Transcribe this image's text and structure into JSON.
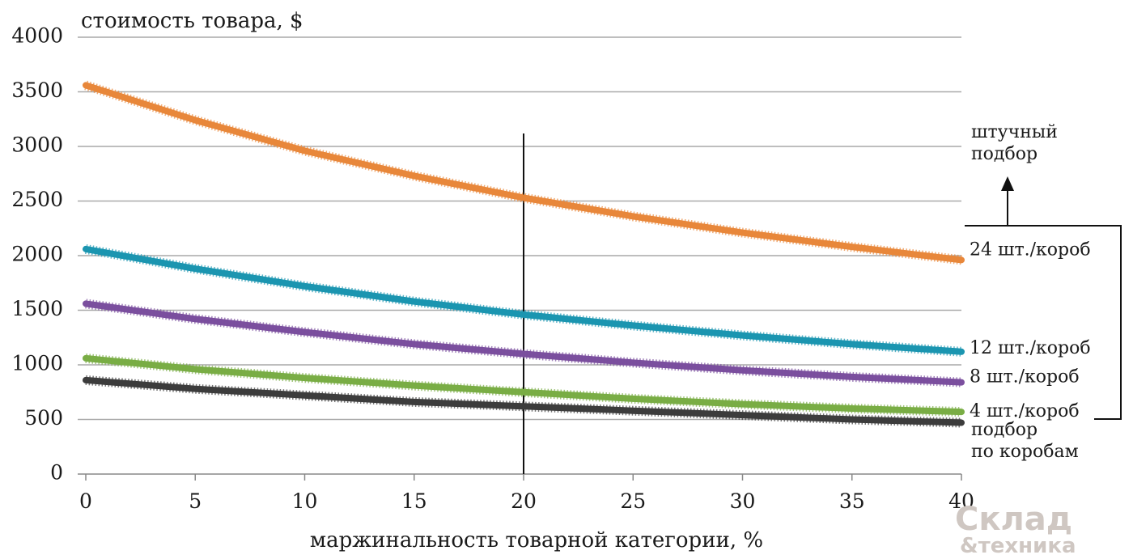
{
  "chart_data": {
    "type": "line",
    "ylabel": "стоимость товара, $",
    "xlabel": "маржинальность товарной категории, %",
    "xlim": [
      0,
      40
    ],
    "ylim": [
      0,
      4000
    ],
    "x_ticks": [
      "0",
      "5",
      "10",
      "15",
      "20",
      "25",
      "30",
      "35",
      "40"
    ],
    "y_ticks": [
      "0",
      "500",
      "1000",
      "1500",
      "2000",
      "2500",
      "3000",
      "3500",
      "4000"
    ],
    "grid": "horizontal",
    "reference_line_x": 20,
    "x": [
      0,
      5,
      10,
      15,
      20,
      25,
      30,
      35,
      40
    ],
    "series": [
      {
        "name": "24 шт./короб",
        "color": "#e8873a",
        "values": [
          3560,
          3240,
          2960,
          2730,
          2530,
          2360,
          2210,
          2080,
          1960
        ]
      },
      {
        "name": "12 шт./короб",
        "color": "#1b95b0",
        "values": [
          2060,
          1880,
          1720,
          1580,
          1460,
          1360,
          1270,
          1190,
          1120
        ]
      },
      {
        "name": "8 шт./короб",
        "color": "#7b4f9e",
        "values": [
          1560,
          1420,
          1300,
          1190,
          1100,
          1020,
          950,
          890,
          840
        ]
      },
      {
        "name": "4 шт./короб",
        "color": "#79ad45",
        "values": [
          1060,
          960,
          880,
          810,
          750,
          690,
          640,
          600,
          570
        ]
      },
      {
        "name": "",
        "color": "#3c3c3c",
        "values": [
          860,
          780,
          720,
          660,
          620,
          580,
          540,
          500,
          470
        ]
      }
    ],
    "annotations": {
      "top": "штучный подбор",
      "bottom": "подбор по коробам"
    }
  },
  "logo": {
    "line1": "Склад",
    "line2": "&техника"
  }
}
